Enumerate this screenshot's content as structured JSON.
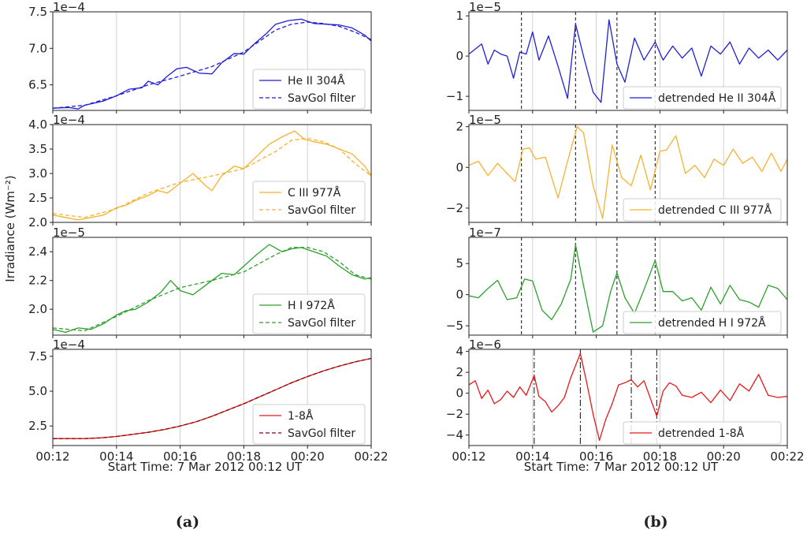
{
  "figure": {
    "ylabel": "Irradiance (Wm⁻²)",
    "xlabel": "Start Time: 7 Mar 2012 00:12 UT",
    "panel_a_label": "(a)",
    "panel_b_label": "(b)",
    "xticks": [
      "00:12",
      "00:14",
      "00:16",
      "00:18",
      "00:20",
      "00:22"
    ]
  },
  "colors": {
    "blue": "#1f1fd8",
    "orange": "#f5b230",
    "green": "#2ca02c",
    "red": "#e41a1c"
  },
  "chart_data": [
    {
      "type": "line",
      "column": "a",
      "row": 0,
      "multiplier": "1e−4",
      "xlim": [
        0,
        10
      ],
      "ylim": [
        6.15,
        7.5
      ],
      "yticks": [
        {
          "v": 6.5,
          "label": "6.5"
        },
        {
          "v": 7.0,
          "label": "7.0"
        },
        {
          "v": 7.5,
          "label": "7.5"
        }
      ],
      "series": [
        {
          "name": "He II 304Å",
          "color": "#1f1fd8",
          "dash": false,
          "x": [
            0,
            0.5,
            0.8,
            1,
            1.3,
            1.6,
            2,
            2.4,
            2.8,
            3,
            3.3,
            3.6,
            3.9,
            4.2,
            4.6,
            5,
            5.3,
            5.7,
            6,
            6.3,
            6.7,
            7,
            7.4,
            7.8,
            8.2,
            8.6,
            9,
            9.4,
            9.8,
            10
          ],
          "y": [
            6.18,
            6.19,
            6.17,
            6.22,
            6.25,
            6.28,
            6.35,
            6.44,
            6.46,
            6.55,
            6.5,
            6.62,
            6.72,
            6.74,
            6.66,
            6.65,
            6.8,
            6.93,
            6.92,
            7.05,
            7.2,
            7.33,
            7.38,
            7.4,
            7.34,
            7.33,
            7.32,
            7.28,
            7.18,
            7.1
          ]
        },
        {
          "name": "SavGol filter",
          "color": "#1f1fd8",
          "dash": true,
          "x": [
            0,
            1,
            2,
            3,
            4,
            5,
            6,
            7,
            7.5,
            8,
            8.5,
            9,
            9.5,
            10
          ],
          "y": [
            6.18,
            6.22,
            6.35,
            6.5,
            6.62,
            6.75,
            6.95,
            7.25,
            7.33,
            7.36,
            7.34,
            7.3,
            7.22,
            7.12
          ]
        }
      ]
    },
    {
      "type": "line",
      "column": "a",
      "row": 1,
      "multiplier": "1e−4",
      "xlim": [
        0,
        10
      ],
      "ylim": [
        2.0,
        4.0
      ],
      "yticks": [
        {
          "v": 2.0,
          "label": "2.0"
        },
        {
          "v": 2.5,
          "label": "2.5"
        },
        {
          "v": 3.0,
          "label": "3.0"
        },
        {
          "v": 3.5,
          "label": "3.5"
        },
        {
          "v": 4.0,
          "label": "4.0"
        }
      ],
      "series": [
        {
          "name": "C III 977Å",
          "color": "#f5b230",
          "dash": false,
          "x": [
            0,
            0.4,
            0.8,
            1.2,
            1.6,
            2,
            2.3,
            2.6,
            3,
            3.3,
            3.6,
            4,
            4.4,
            4.8,
            5,
            5.3,
            5.7,
            6,
            6.4,
            6.8,
            7.2,
            7.6,
            7.9,
            8.2,
            8.6,
            9,
            9.4,
            9.8,
            10
          ],
          "y": [
            2.15,
            2.1,
            2.05,
            2.1,
            2.15,
            2.3,
            2.35,
            2.45,
            2.55,
            2.65,
            2.6,
            2.8,
            3.0,
            2.75,
            2.65,
            2.95,
            3.15,
            3.1,
            3.35,
            3.6,
            3.75,
            3.87,
            3.7,
            3.65,
            3.6,
            3.5,
            3.4,
            3.15,
            2.95
          ]
        },
        {
          "name": "SavGol filter",
          "color": "#f5b230",
          "dash": true,
          "x": [
            0,
            1,
            2,
            3,
            4,
            5,
            6,
            7,
            7.5,
            8,
            8.5,
            9,
            9.5,
            10
          ],
          "y": [
            2.18,
            2.1,
            2.28,
            2.6,
            2.82,
            2.95,
            3.1,
            3.45,
            3.68,
            3.72,
            3.65,
            3.5,
            3.2,
            2.95
          ]
        }
      ]
    },
    {
      "type": "line",
      "column": "a",
      "row": 2,
      "multiplier": "1e−5",
      "xlim": [
        0,
        10
      ],
      "ylim": [
        1.82,
        2.5
      ],
      "yticks": [
        {
          "v": 2.0,
          "label": "2.0"
        },
        {
          "v": 2.2,
          "label": "2.2"
        },
        {
          "v": 2.4,
          "label": "2.4"
        }
      ],
      "series": [
        {
          "name": "H I 972Å",
          "color": "#2ca02c",
          "dash": false,
          "x": [
            0,
            0.4,
            0.8,
            1.2,
            1.6,
            2,
            2.3,
            2.6,
            3,
            3.4,
            3.7,
            4,
            4.4,
            4.7,
            5,
            5.3,
            5.7,
            6,
            6.4,
            6.8,
            7.2,
            7.5,
            7.8,
            8.2,
            8.6,
            9,
            9.4,
            9.8,
            10
          ],
          "y": [
            1.86,
            1.84,
            1.87,
            1.86,
            1.9,
            1.96,
            1.99,
            2.0,
            2.05,
            2.12,
            2.2,
            2.13,
            2.1,
            2.15,
            2.2,
            2.25,
            2.24,
            2.3,
            2.38,
            2.45,
            2.4,
            2.42,
            2.43,
            2.4,
            2.37,
            2.3,
            2.24,
            2.21,
            2.22
          ]
        },
        {
          "name": "SavGol filter",
          "color": "#2ca02c",
          "dash": true,
          "x": [
            0,
            1,
            2,
            3,
            4,
            5,
            6,
            7,
            7.5,
            8,
            8.5,
            9,
            9.5,
            10
          ],
          "y": [
            1.87,
            1.85,
            1.95,
            2.06,
            2.15,
            2.2,
            2.26,
            2.38,
            2.43,
            2.43,
            2.4,
            2.33,
            2.24,
            2.21
          ]
        }
      ]
    },
    {
      "type": "line",
      "column": "a",
      "row": 3,
      "multiplier": "1e−4",
      "xlim": [
        0,
        10
      ],
      "ylim": [
        1.1,
        8.0
      ],
      "yticks": [
        {
          "v": 2.5,
          "label": "2.5"
        },
        {
          "v": 5.0,
          "label": "5.0"
        },
        {
          "v": 7.5,
          "label": "7.5"
        }
      ],
      "series": [
        {
          "name": "1-8Å",
          "color": "#e41a1c",
          "dash": false,
          "x": [
            0,
            0.5,
            1,
            1.5,
            2,
            2.5,
            3,
            3.5,
            4,
            4.5,
            5,
            5.5,
            6,
            6.5,
            7,
            7.5,
            8,
            8.5,
            9,
            9.5,
            10
          ],
          "y": [
            1.6,
            1.6,
            1.6,
            1.65,
            1.75,
            1.9,
            2.05,
            2.25,
            2.5,
            2.8,
            3.2,
            3.65,
            4.1,
            4.6,
            5.1,
            5.6,
            6.05,
            6.45,
            6.8,
            7.1,
            7.35
          ]
        },
        {
          "name": "SavGol filter",
          "color": "#8b0000",
          "dash": true,
          "x": [
            0,
            0.5,
            1,
            1.5,
            2,
            2.5,
            3,
            3.5,
            4,
            4.5,
            5,
            5.5,
            6,
            6.5,
            7,
            7.5,
            8,
            8.5,
            9,
            9.5,
            10
          ],
          "y": [
            1.6,
            1.6,
            1.6,
            1.65,
            1.75,
            1.9,
            2.05,
            2.25,
            2.5,
            2.8,
            3.2,
            3.65,
            4.1,
            4.6,
            5.1,
            5.6,
            6.05,
            6.45,
            6.8,
            7.1,
            7.35
          ]
        }
      ]
    },
    {
      "type": "line",
      "column": "b",
      "row": 0,
      "multiplier": "1e−5",
      "xlim": [
        0,
        10
      ],
      "ylim": [
        -1.35,
        1.1
      ],
      "yticks": [
        {
          "v": -1,
          "label": "−1"
        },
        {
          "v": 0,
          "label": "0"
        },
        {
          "v": 1,
          "label": "1"
        }
      ],
      "vlines": {
        "x": [
          1.65,
          3.35,
          4.65,
          5.85
        ],
        "style": "dashed"
      },
      "series": [
        {
          "name": "detrended He II 304Å",
          "color": "#1f1fd8",
          "dash": false,
          "x": [
            0,
            0.4,
            0.6,
            0.8,
            1.0,
            1.2,
            1.4,
            1.6,
            1.8,
            2.0,
            2.2,
            2.5,
            2.8,
            3.1,
            3.35,
            3.6,
            3.9,
            4.15,
            4.4,
            4.65,
            4.9,
            5.2,
            5.5,
            5.85,
            6.1,
            6.4,
            6.7,
            7.0,
            7.3,
            7.6,
            7.9,
            8.2,
            8.5,
            8.8,
            9.1,
            9.4,
            9.7,
            10
          ],
          "y": [
            0.05,
            0.3,
            -0.2,
            0.15,
            0.05,
            0.0,
            -0.55,
            0.1,
            0.05,
            0.6,
            -0.1,
            0.5,
            -0.25,
            -1.05,
            0.8,
            0.0,
            -0.9,
            -1.15,
            0.9,
            -0.2,
            -0.65,
            0.45,
            -0.1,
            0.35,
            -0.1,
            0.25,
            -0.05,
            0.2,
            -0.5,
            0.25,
            0.05,
            0.35,
            -0.2,
            0.2,
            -0.05,
            0.15,
            -0.1,
            0.15
          ]
        }
      ]
    },
    {
      "type": "line",
      "column": "b",
      "row": 1,
      "multiplier": "1e−5",
      "xlim": [
        0,
        10
      ],
      "ylim": [
        -2.7,
        2.1
      ],
      "yticks": [
        {
          "v": -2,
          "label": "−2"
        },
        {
          "v": 0,
          "label": "0"
        },
        {
          "v": 2,
          "label": "2"
        }
      ],
      "vlines": {
        "x": [
          1.65,
          3.35,
          4.65,
          5.85
        ],
        "style": "dashed"
      },
      "series": [
        {
          "name": "detrended C III 977Å",
          "color": "#f5b230",
          "dash": false,
          "x": [
            0,
            0.3,
            0.6,
            0.9,
            1.2,
            1.45,
            1.7,
            1.9,
            2.1,
            2.4,
            2.8,
            3.1,
            3.4,
            3.6,
            3.9,
            4.2,
            4.5,
            4.8,
            5.1,
            5.4,
            5.7,
            6.0,
            6.2,
            6.5,
            6.8,
            7.1,
            7.4,
            7.7,
            8.0,
            8.3,
            8.6,
            8.9,
            9.2,
            9.5,
            9.8,
            10
          ],
          "y": [
            0.1,
            0.3,
            -0.4,
            0.2,
            -0.3,
            -0.7,
            0.9,
            0.95,
            0.4,
            0.5,
            -1.5,
            0.3,
            2.0,
            1.7,
            -0.9,
            -2.5,
            1.1,
            -0.5,
            -0.9,
            0.6,
            -1.1,
            0.8,
            0.85,
            1.55,
            -0.3,
            0.1,
            -0.5,
            0.4,
            0.1,
            0.9,
            0.2,
            0.5,
            -0.2,
            0.7,
            -0.2,
            0.4
          ]
        }
      ]
    },
    {
      "type": "line",
      "column": "b",
      "row": 2,
      "multiplier": "1e−7",
      "xlim": [
        0,
        10
      ],
      "ylim": [
        -6.5,
        9.2
      ],
      "yticks": [
        {
          "v": -5,
          "label": "−5"
        },
        {
          "v": 0,
          "label": "0"
        },
        {
          "v": 5,
          "label": "5"
        }
      ],
      "vlines": {
        "x": [
          1.65,
          3.35,
          4.65,
          5.85
        ],
        "style": "dashed"
      },
      "series": [
        {
          "name": "detrended H I 972Å",
          "color": "#2ca02c",
          "dash": false,
          "x": [
            0,
            0.3,
            0.6,
            0.9,
            1.2,
            1.5,
            1.75,
            2.0,
            2.3,
            2.6,
            2.9,
            3.2,
            3.35,
            3.6,
            3.9,
            4.2,
            4.45,
            4.65,
            4.9,
            5.2,
            5.5,
            5.85,
            6.1,
            6.4,
            6.7,
            7.0,
            7.3,
            7.6,
            7.9,
            8.2,
            8.5,
            8.8,
            9.1,
            9.4,
            9.7,
            10
          ],
          "y": [
            -0.2,
            -0.5,
            1.0,
            2.3,
            -0.8,
            -0.5,
            2.5,
            2.2,
            -2.5,
            -4.0,
            -1.5,
            2.5,
            8.0,
            1.5,
            -6.0,
            -5.0,
            0.5,
            3.5,
            -0.5,
            -3.0,
            0.8,
            5.5,
            0.5,
            0.5,
            -1.0,
            -0.5,
            -2.5,
            1.2,
            -1.5,
            1.5,
            -0.8,
            -1.2,
            -2.0,
            1.5,
            1.0,
            -0.8
          ]
        }
      ]
    },
    {
      "type": "line",
      "column": "b",
      "row": 3,
      "multiplier": "1e−6",
      "xlim": [
        0,
        10
      ],
      "ylim": [
        -5.0,
        4.2
      ],
      "yticks": [
        {
          "v": -4,
          "label": "−4"
        },
        {
          "v": -2,
          "label": "−2"
        },
        {
          "v": 0,
          "label": "0"
        },
        {
          "v": 2,
          "label": "2"
        },
        {
          "v": 4,
          "label": "4"
        }
      ],
      "vlines": {
        "x": [
          2.05,
          3.5,
          5.1,
          5.9
        ],
        "style": "dashdot"
      },
      "series": [
        {
          "name": "detrended 1-8Å",
          "color": "#e41a1c",
          "dash": false,
          "x": [
            0,
            0.2,
            0.4,
            0.6,
            0.8,
            1.0,
            1.2,
            1.4,
            1.6,
            1.8,
            2.05,
            2.2,
            2.4,
            2.6,
            2.8,
            3.0,
            3.2,
            3.5,
            3.7,
            3.9,
            4.1,
            4.3,
            4.5,
            4.7,
            4.9,
            5.1,
            5.3,
            5.5,
            5.7,
            5.9,
            6.1,
            6.3,
            6.5,
            6.7,
            7.0,
            7.3,
            7.6,
            7.9,
            8.2,
            8.5,
            8.8,
            9.1,
            9.4,
            9.7,
            10
          ],
          "y": [
            0.8,
            1.2,
            -0.5,
            0.3,
            -1.0,
            -0.6,
            0.2,
            -0.4,
            0.6,
            -0.2,
            1.7,
            -0.3,
            -0.8,
            -1.8,
            -1.2,
            -0.4,
            1.5,
            3.8,
            1.0,
            -2.0,
            -4.5,
            -2.5,
            -1.0,
            0.8,
            1.0,
            1.3,
            0.6,
            1.2,
            -0.5,
            -2.2,
            0.2,
            1.0,
            0.7,
            -0.2,
            -0.4,
            0.1,
            -0.9,
            0.3,
            -0.7,
            0.9,
            0.2,
            1.8,
            -0.2,
            -0.4,
            -0.3
          ]
        }
      ]
    }
  ]
}
